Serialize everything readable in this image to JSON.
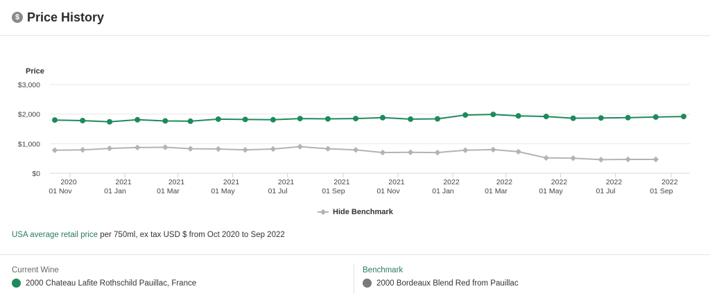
{
  "header": {
    "title": "Price History",
    "icon": "dollar-circle-icon"
  },
  "legend": {
    "toggle_label": "Hide Benchmark"
  },
  "footnote": {
    "link_text": "USA average retail price",
    "rest_text": " per 750ml, ex tax USD $ from Oct 2020 to Sep 2022"
  },
  "current_wine": {
    "title": "Current Wine",
    "name": "2000 Chateau Lafite Rothschild Pauillac, France",
    "color": "#1e8a5c"
  },
  "benchmark": {
    "title": "Benchmark",
    "name": "2000 Bordeaux Blend Red from Pauillac",
    "color": "#7a7a7a"
  },
  "chart_data": {
    "type": "line",
    "ylabel": "Price",
    "ylim": [
      0,
      3000
    ],
    "yticks": [
      0,
      1000,
      2000,
      3000
    ],
    "ytick_labels": [
      "$0",
      "$1,000",
      "$2,000",
      "$3,000"
    ],
    "x_ticks": [
      {
        "top": "2020",
        "bottom": "01 Nov",
        "date": "2020-11-01"
      },
      {
        "top": "2021",
        "bottom": "01 Jan",
        "date": "2021-01-01"
      },
      {
        "top": "2021",
        "bottom": "01 Mar",
        "date": "2021-03-01"
      },
      {
        "top": "2021",
        "bottom": "01 May",
        "date": "2021-05-01"
      },
      {
        "top": "2021",
        "bottom": "01 Jul",
        "date": "2021-07-01"
      },
      {
        "top": "2021",
        "bottom": "01 Sep",
        "date": "2021-09-01"
      },
      {
        "top": "2021",
        "bottom": "01 Nov",
        "date": "2021-11-01"
      },
      {
        "top": "2022",
        "bottom": "01 Jan",
        "date": "2022-01-01"
      },
      {
        "top": "2022",
        "bottom": "01 Mar",
        "date": "2022-03-01"
      },
      {
        "top": "2022",
        "bottom": "01 May",
        "date": "2022-05-01"
      },
      {
        "top": "2022",
        "bottom": "01 Jul",
        "date": "2022-07-01"
      },
      {
        "top": "2022",
        "bottom": "01 Sep",
        "date": "2022-09-01"
      }
    ],
    "x": [
      "2020-10",
      "2020-11",
      "2020-12",
      "2021-01",
      "2021-02",
      "2021-03",
      "2021-04",
      "2021-05",
      "2021-06",
      "2021-07",
      "2021-08",
      "2021-09",
      "2021-10",
      "2021-11",
      "2021-12",
      "2022-01",
      "2022-02",
      "2022-03",
      "2022-04",
      "2022-05",
      "2022-06",
      "2022-07",
      "2022-08",
      "2022-09"
    ],
    "series": [
      {
        "color": "#1e8a5c",
        "values": [
          1800,
          1780,
          1740,
          1810,
          1770,
          1760,
          1830,
          1820,
          1810,
          1850,
          1840,
          1850,
          1880,
          1830,
          1840,
          1970,
          1990,
          1940,
          1920,
          1860,
          1870,
          1880,
          1900,
          1920
        ]
      },
      {
        "color": "#b3b3b3",
        "values": [
          780,
          790,
          840,
          870,
          880,
          830,
          820,
          790,
          820,
          900,
          830,
          790,
          700,
          710,
          700,
          780,
          800,
          730,
          520,
          510,
          460,
          470,
          470,
          null
        ]
      }
    ],
    "grid": true,
    "legend_position": "bottom"
  }
}
